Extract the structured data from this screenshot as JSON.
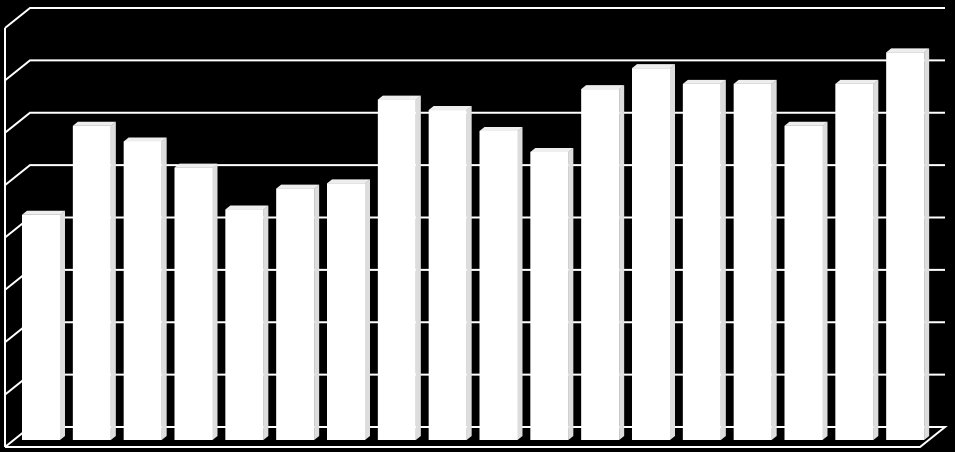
{
  "chart_data": {
    "type": "bar3d",
    "categories": [
      null,
      null,
      null,
      null,
      null,
      null,
      null,
      null,
      null,
      null,
      null,
      null,
      null,
      null,
      null,
      null,
      null,
      null
    ],
    "values": [
      4.3,
      6.0,
      5.7,
      5.2,
      4.4,
      4.8,
      4.9,
      6.5,
      6.3,
      5.9,
      5.5,
      6.7,
      7.1,
      6.8,
      6.8,
      6.0,
      6.8,
      7.4
    ],
    "color": "#ffffff",
    "ylim": [
      0,
      8
    ],
    "yticks": [
      0,
      1,
      2,
      3,
      4,
      5,
      6,
      7,
      8
    ],
    "grid": true
  }
}
